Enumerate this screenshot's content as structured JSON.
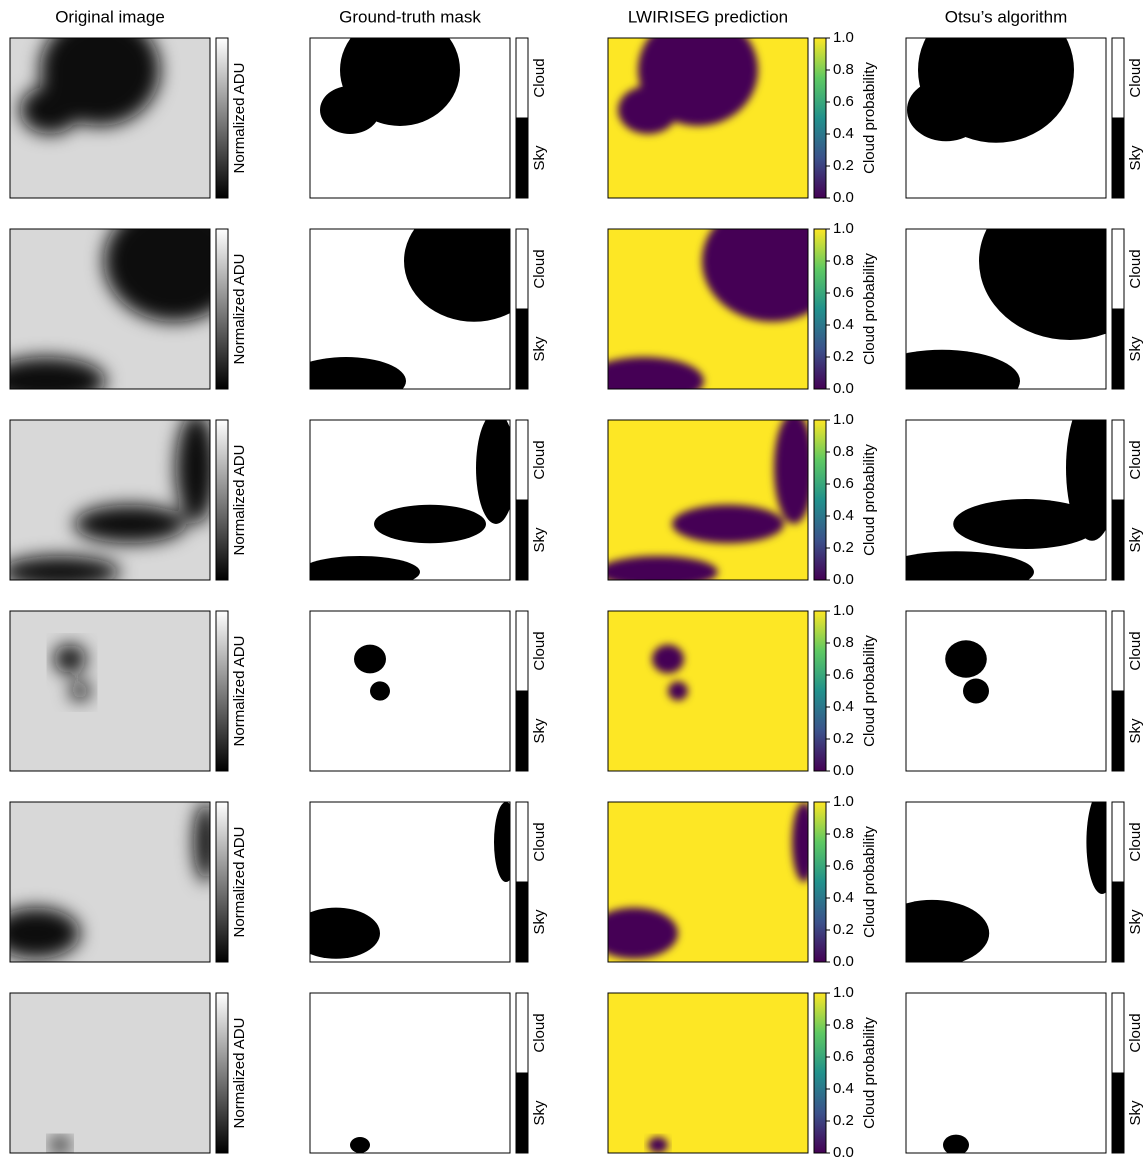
{
  "columns": [
    "Original image",
    "Ground-truth mask",
    "LWIRISEG prediction",
    "Otsu’s algorithm"
  ],
  "colorbars": {
    "adu_label": "Normalized ADU",
    "mask_labels": [
      "Cloud",
      "Sky"
    ],
    "prob_label": "Cloud probability",
    "prob_ticks": [
      {
        "value": 0,
        "label": "0.0"
      },
      {
        "value": 0.2,
        "label": "0.2"
      },
      {
        "value": 0.4,
        "label": "0.4"
      },
      {
        "value": 0.6,
        "label": "0.6"
      },
      {
        "value": 0.8,
        "label": "0.8"
      },
      {
        "value": 1,
        "label": "1.0"
      }
    ]
  }
}
